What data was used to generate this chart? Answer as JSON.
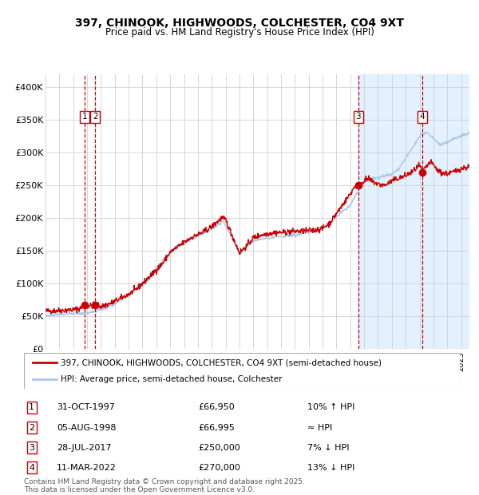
{
  "title_line1": "397, CHINOOK, HIGHWOODS, COLCHESTER, CO4 9XT",
  "title_line2": "Price paid vs. HM Land Registry's House Price Index (HPI)",
  "ylim": [
    0,
    420000
  ],
  "yticks": [
    0,
    50000,
    100000,
    150000,
    200000,
    250000,
    300000,
    350000,
    400000
  ],
  "ytick_labels": [
    "£0",
    "£50K",
    "£100K",
    "£150K",
    "£200K",
    "£250K",
    "£300K",
    "£350K",
    "£400K"
  ],
  "hpi_color": "#a8c8e8",
  "price_color": "#cc0000",
  "marker_color": "#cc0000",
  "vline_color": "#cc0000",
  "grid_color": "#d0d0d0",
  "background_color": "#ffffff",
  "highlight_bg": "#ddeeff",
  "legend_price_label": "397, CHINOOK, HIGHWOODS, COLCHESTER, CO4 9XT (semi-detached house)",
  "legend_hpi_label": "HPI: Average price, semi-detached house, Colchester",
  "sale_points": [
    {
      "index": 1,
      "date": "31-OCT-1997",
      "price": 66950,
      "note": "10% ↑ HPI",
      "year": 1997.83
    },
    {
      "index": 2,
      "date": "05-AUG-1998",
      "price": 66995,
      "note": "≈ HPI",
      "year": 1998.59
    },
    {
      "index": 3,
      "date": "28-JUL-2017",
      "price": 250000,
      "note": "7% ↓ HPI",
      "year": 2017.57
    },
    {
      "index": 4,
      "date": "11-MAR-2022",
      "price": 270000,
      "note": "13% ↓ HPI",
      "year": 2022.19
    }
  ],
  "footer": "Contains HM Land Registry data © Crown copyright and database right 2025.\nThis data is licensed under the Open Government Licence v3.0.",
  "highlight_start_year": 2017.57,
  "highlight_end_year": 2025.6,
  "xmin": 1995.0,
  "xmax": 2025.6
}
